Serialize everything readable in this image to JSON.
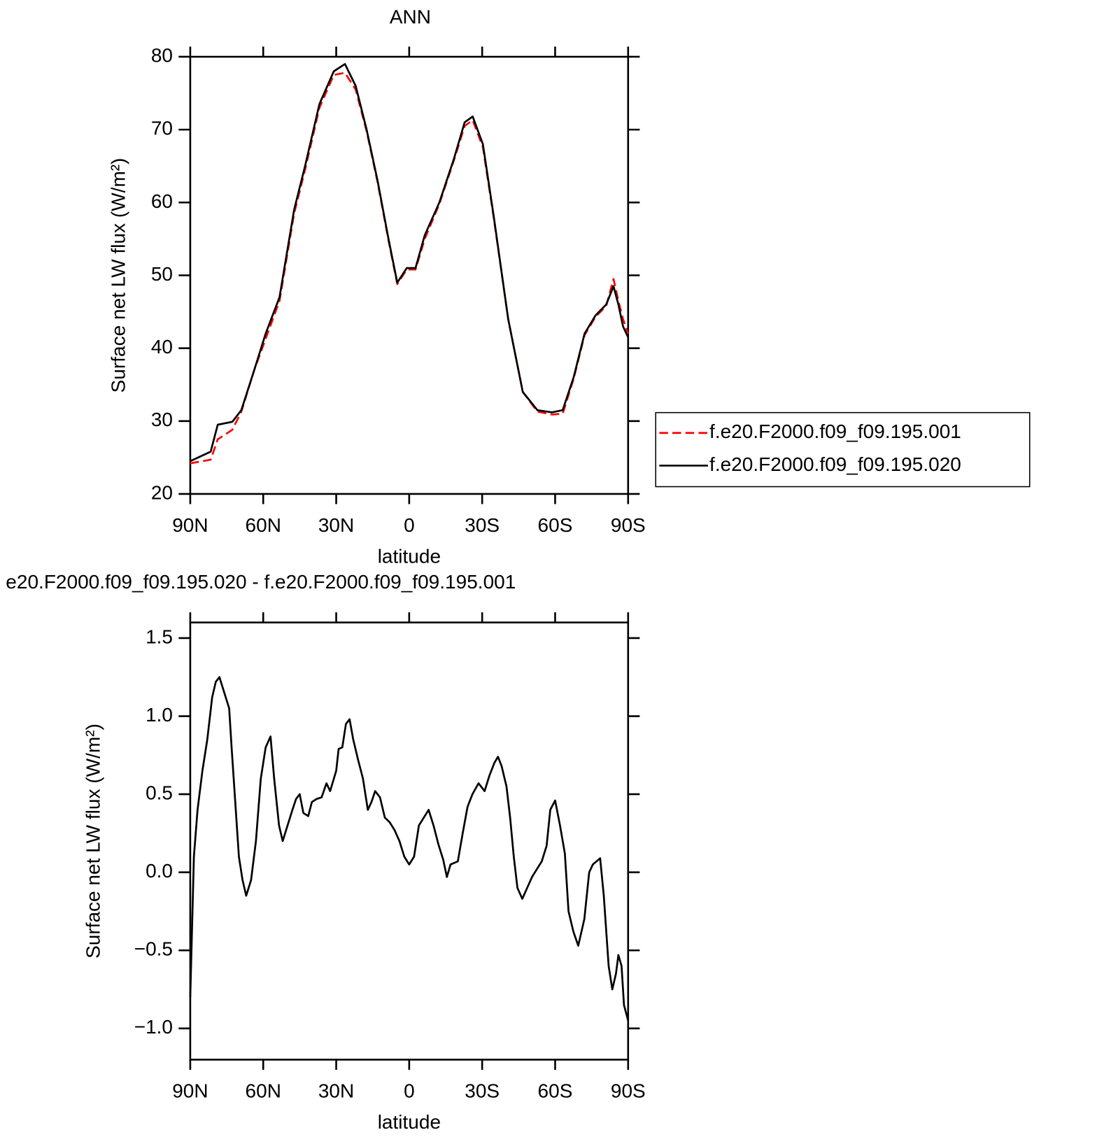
{
  "chart_data": [
    {
      "type": "line",
      "title": "ANN",
      "xlabel": "latitude",
      "ylabel": "Surface net LW flux (W/m²)",
      "x": [
        90,
        81.6,
        78.7,
        72.7,
        69,
        63.7,
        59,
        53.3,
        47.3,
        42.8,
        36.9,
        31,
        26.4,
        22,
        17.5,
        13,
        8.5,
        4.9,
        1,
        -2.6,
        -6.4,
        -12.4,
        -18.4,
        -22.8,
        -26.1,
        -30.3,
        -34.8,
        -40.7,
        -46.7,
        -52.7,
        -58.7,
        -63.1,
        -67.6,
        -72.1,
        -76.6,
        -81,
        -84,
        -86,
        -87.9,
        -90
      ],
      "series": [
        {
          "name": "f.e20.F2000.f09_f09.195.001",
          "color": "#ff0000",
          "dashed": true,
          "values": [
            24.2,
            24.7,
            27.5,
            28.8,
            31.3,
            37,
            41.3,
            46.5,
            58.5,
            64.5,
            73,
            77.5,
            77.8,
            75.5,
            69.8,
            62.8,
            54.8,
            48.8,
            50.8,
            50.8,
            55,
            59.8,
            65.8,
            70.5,
            71.3,
            67.6,
            57.8,
            44,
            34,
            31.3,
            30.9,
            31,
            35.8,
            41.8,
            44.3,
            45.8,
            49.5,
            46.5,
            44,
            42
          ]
        },
        {
          "name": "f.e20.F2000.f09_f09.195.020",
          "color": "#000000",
          "dashed": false,
          "values": [
            24.5,
            25.8,
            29.5,
            29.9,
            31.5,
            37,
            42,
            47,
            59,
            65,
            73.5,
            78,
            79,
            76,
            70,
            63,
            55,
            49,
            51,
            51,
            55.5,
            60,
            66,
            71,
            71.8,
            68,
            58,
            44,
            34,
            31.5,
            31.2,
            31.5,
            36,
            42,
            44.5,
            46,
            48.5,
            46,
            43,
            41.5
          ]
        }
      ],
      "xlim": [
        90,
        -90
      ],
      "xticks": [
        {
          "value": 90,
          "label": "90N"
        },
        {
          "value": 60,
          "label": "60N"
        },
        {
          "value": 30,
          "label": "30N"
        },
        0,
        {
          "value": -30,
          "label": "30S"
        },
        {
          "value": -60,
          "label": "60S"
        },
        {
          "value": -90,
          "label": "90S"
        }
      ],
      "ylim": [
        20,
        80
      ],
      "yticks": [
        20,
        30,
        40,
        50,
        60,
        70,
        80
      ],
      "legend": "right",
      "grid": false
    },
    {
      "type": "line",
      "title": "e20.F2000.f09_f09.195.020 - f.e20.F2000.f09_f09.195.001",
      "xlabel": "latitude",
      "ylabel": "Surface net LW flux (W/m²)",
      "x": [
        90,
        88.5,
        87,
        85,
        83,
        81,
        79.5,
        78,
        76,
        74,
        73,
        71.5,
        70,
        68.5,
        67,
        65,
        63,
        61,
        59,
        57,
        55.5,
        53.5,
        52,
        50,
        48,
        46.5,
        45,
        43.5,
        41.5,
        40,
        38,
        36,
        34,
        32.5,
        30,
        29,
        27.5,
        26,
        24.5,
        23,
        21,
        19,
        17,
        15.5,
        14,
        12,
        10,
        8,
        6,
        4,
        2,
        0,
        -2,
        -4,
        -6,
        -8,
        -10,
        -12,
        -14,
        -15.5,
        -17,
        -20,
        -22,
        -24,
        -26,
        -28.5,
        -31,
        -33,
        -35,
        -36.5,
        -38,
        -40,
        -41.5,
        -43,
        -44.5,
        -46.5,
        -48.5,
        -50.5,
        -52.5,
        -54.5,
        -56.5,
        -58,
        -60,
        -62,
        -64,
        -65.5,
        -67.5,
        -69.5,
        -72,
        -74,
        -75.5,
        -78.5,
        -80,
        -82,
        -83.5,
        -85,
        -86,
        -87.3,
        -88.3,
        -90
      ],
      "values": [
        -0.8,
        0.1,
        0.4,
        0.65,
        0.85,
        1.12,
        1.22,
        1.25,
        1.15,
        1.05,
        0.8,
        0.45,
        0.1,
        -0.05,
        -0.15,
        -0.05,
        0.2,
        0.6,
        0.8,
        0.87,
        0.6,
        0.3,
        0.2,
        0.3,
        0.4,
        0.47,
        0.5,
        0.38,
        0.36,
        0.45,
        0.47,
        0.48,
        0.57,
        0.52,
        0.65,
        0.79,
        0.8,
        0.95,
        0.98,
        0.85,
        0.72,
        0.6,
        0.4,
        0.45,
        0.52,
        0.48,
        0.35,
        0.32,
        0.27,
        0.2,
        0.1,
        0.05,
        0.1,
        0.3,
        0.35,
        0.4,
        0.3,
        0.18,
        0.08,
        -0.03,
        0.05,
        0.07,
        0.25,
        0.42,
        0.5,
        0.57,
        0.52,
        0.62,
        0.7,
        0.74,
        0.68,
        0.55,
        0.35,
        0.1,
        -0.1,
        -0.17,
        -0.1,
        -0.03,
        0.02,
        0.07,
        0.17,
        0.4,
        0.46,
        0.3,
        0.12,
        -0.25,
        -0.38,
        -0.47,
        -0.3,
        0.0,
        0.05,
        0.09,
        -0.15,
        -0.6,
        -0.75,
        -0.65,
        -0.53,
        -0.6,
        -0.85,
        -0.95
      ],
      "color": "#000000",
      "xlim": [
        90,
        -90
      ],
      "xticks": [
        {
          "value": 90,
          "label": "90N"
        },
        {
          "value": 60,
          "label": "60N"
        },
        {
          "value": 30,
          "label": "30N"
        },
        0,
        {
          "value": -30,
          "label": "30S"
        },
        {
          "value": -60,
          "label": "60S"
        },
        {
          "value": -90,
          "label": "90S"
        }
      ],
      "ylim": [
        -1.2,
        1.6
      ],
      "yticks": [
        {
          "value": -1,
          "label": "−1.0"
        },
        {
          "value": -0.5,
          "label": "−0.5"
        },
        {
          "value": 0,
          "label": "0.0"
        },
        0.5,
        {
          "value": 1,
          "label": "1.0"
        },
        1.5
      ],
      "grid": false
    }
  ]
}
